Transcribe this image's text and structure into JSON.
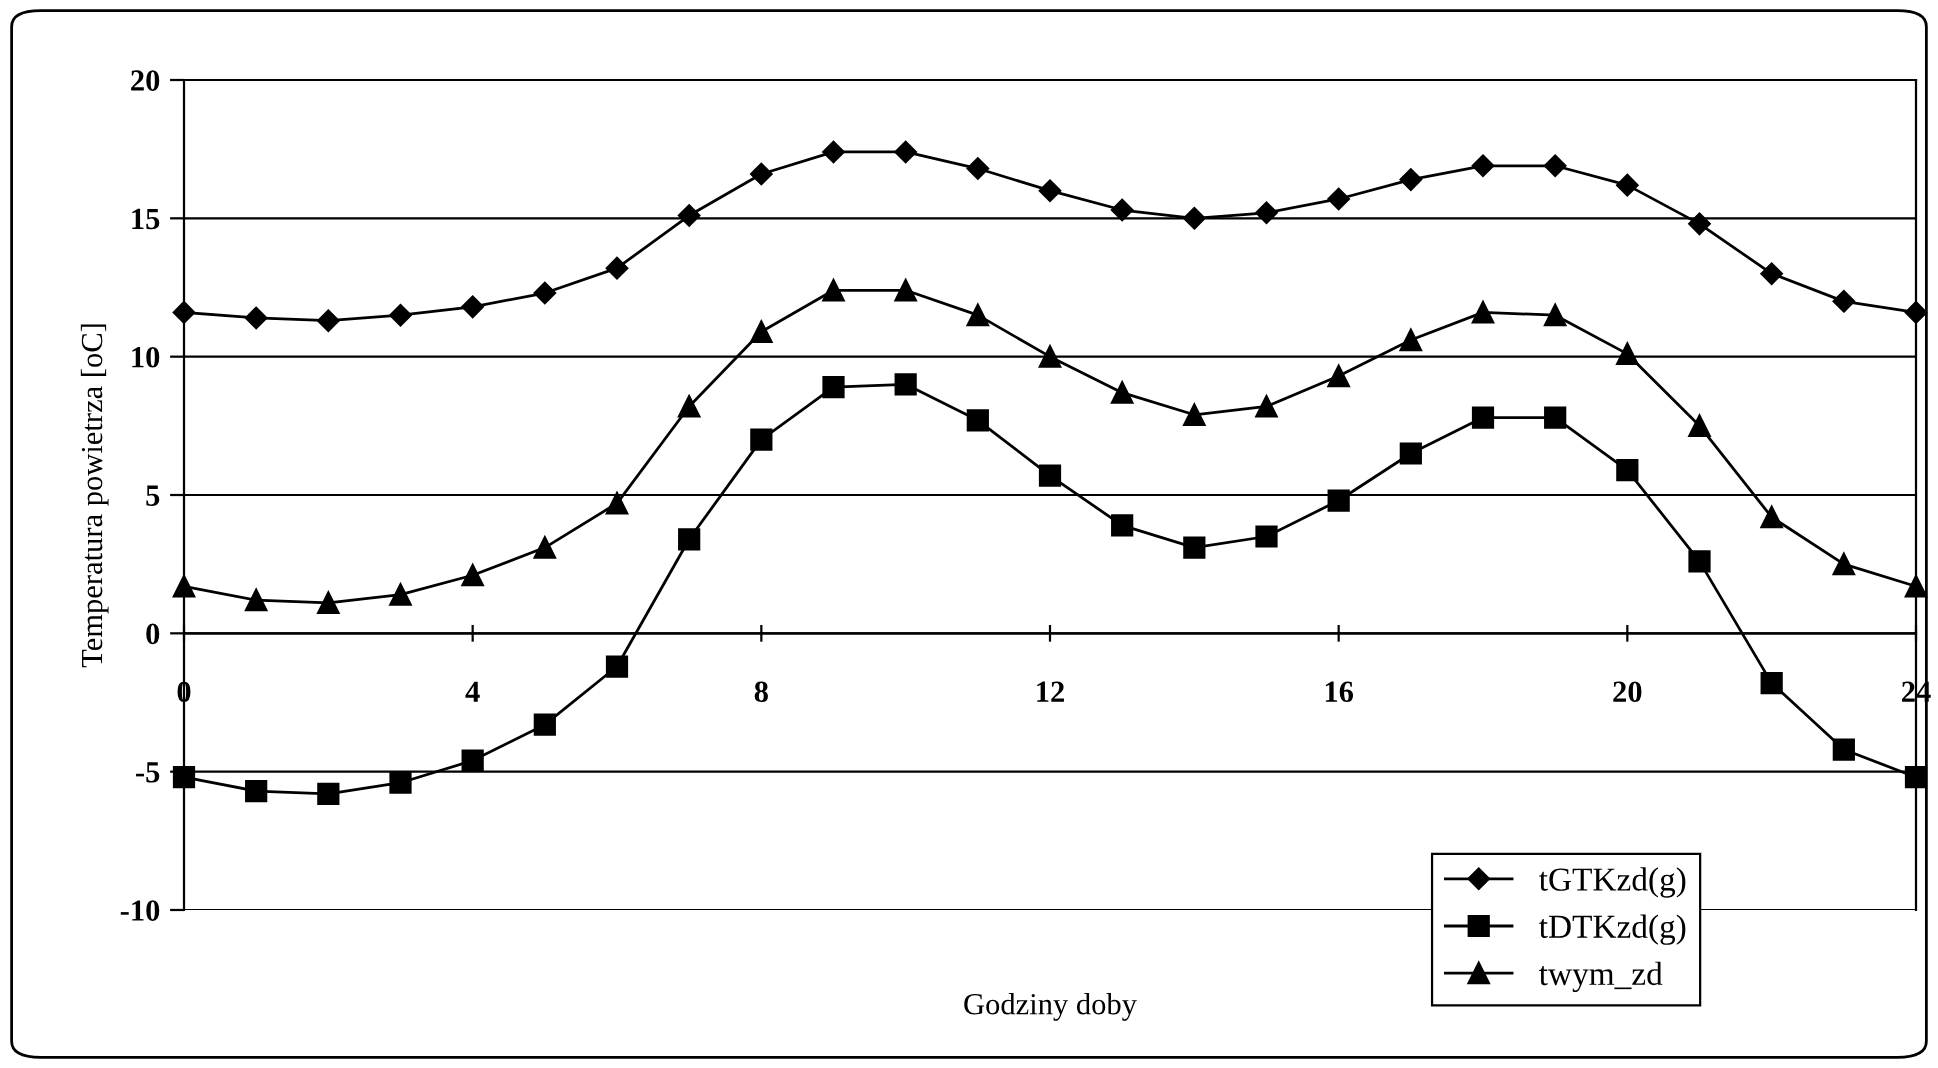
{
  "chart_data": {
    "type": "line",
    "xlabel": "Godziny doby",
    "ylabel": "Temperatura powietrza [oC]",
    "x": [
      0,
      1,
      2,
      3,
      4,
      5,
      6,
      7,
      8,
      9,
      10,
      11,
      12,
      13,
      14,
      15,
      16,
      17,
      18,
      19,
      20,
      21,
      22,
      23,
      24
    ],
    "series": [
      {
        "name": "tGTKzd(g)",
        "color": "#000000",
        "marker": "diamond",
        "values": [
          11.6,
          11.4,
          11.3,
          11.5,
          11.8,
          12.3,
          13.2,
          15.1,
          16.6,
          17.4,
          17.4,
          16.8,
          16.0,
          15.3,
          15.0,
          15.2,
          15.7,
          16.4,
          16.9,
          16.9,
          16.2,
          14.8,
          13.0,
          12.0,
          11.6
        ]
      },
      {
        "name": "tDTKzd(g)",
        "color": "#000000",
        "marker": "square",
        "values": [
          -5.2,
          -5.7,
          -5.8,
          -5.4,
          -4.6,
          -3.3,
          -1.2,
          3.4,
          7.0,
          8.9,
          9.0,
          7.7,
          5.7,
          3.9,
          3.1,
          3.5,
          4.8,
          6.5,
          7.8,
          7.8,
          5.9,
          2.6,
          -1.8,
          -4.2,
          -5.2
        ]
      },
      {
        "name": "twym_zd",
        "color": "#000000",
        "marker": "triangle",
        "values": [
          1.7,
          1.2,
          1.1,
          1.4,
          2.1,
          3.1,
          4.7,
          8.2,
          10.9,
          12.4,
          12.4,
          11.5,
          10.0,
          8.7,
          7.9,
          8.2,
          9.3,
          10.6,
          11.6,
          11.5,
          10.1,
          7.5,
          4.2,
          2.5,
          1.7
        ]
      }
    ],
    "xlim": [
      0,
      24
    ],
    "xticks": [
      0,
      4,
      8,
      12,
      16,
      20,
      24
    ],
    "ylim": [
      -10,
      20
    ],
    "yticks": [
      -10,
      -5,
      0,
      5,
      10,
      15,
      20
    ],
    "grid": "y",
    "legend": "bottom right",
    "line_style": "solid"
  }
}
